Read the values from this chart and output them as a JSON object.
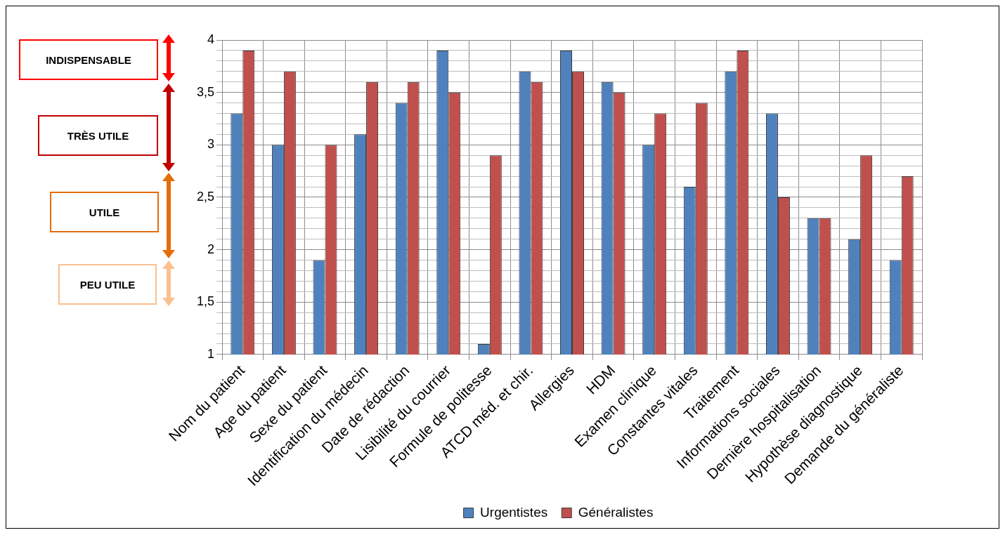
{
  "chart_data": {
    "type": "bar",
    "categories": [
      "Nom du patient",
      "Age du patient",
      "Sexe du patient",
      "Identification du médecin",
      "Date de rédaction",
      "Lisibilité du courrier",
      "Formule de politesse",
      "ATCD méd. et chir.",
      "Allergies",
      "HDM",
      "Examen clinique",
      "Constantes vitales",
      "Traitement",
      "Informations sociales",
      "Dernière hospitalisation",
      "Hypothèse diagnostique",
      "Demande du généraliste"
    ],
    "series": [
      {
        "name": "Urgentistes",
        "color": "#4f81bd",
        "values": [
          3.3,
          3.0,
          1.9,
          3.1,
          3.4,
          3.9,
          1.1,
          3.7,
          3.9,
          3.6,
          3.0,
          2.6,
          3.7,
          3.3,
          2.3,
          2.1,
          1.9
        ]
      },
      {
        "name": "Généralistes",
        "color": "#c0504d",
        "values": [
          3.9,
          3.7,
          3.0,
          3.6,
          3.6,
          3.5,
          2.9,
          3.6,
          3.7,
          3.5,
          3.3,
          3.4,
          3.9,
          2.5,
          2.3,
          2.9,
          2.7
        ]
      }
    ],
    "ylim": [
      1,
      4
    ],
    "yticks": [
      1,
      {
        "value": 1.1,
        "label": null
      },
      {
        "value": 1.2,
        "label": null
      },
      {
        "value": 1.3,
        "label": null
      },
      {
        "value": 1.4,
        "label": null
      },
      {
        "value": 1.5,
        "label": "1,5"
      },
      {
        "value": 1.6,
        "label": null
      },
      {
        "value": 1.7,
        "label": null
      },
      {
        "value": 1.8,
        "label": null
      },
      {
        "value": 1.9,
        "label": null
      },
      2,
      {
        "value": 2.1,
        "label": null
      },
      {
        "value": 2.2,
        "label": null
      },
      {
        "value": 2.3,
        "label": null
      },
      {
        "value": 2.4,
        "label": null
      },
      {
        "value": 2.5,
        "label": "2,5"
      },
      {
        "value": 2.6,
        "label": null
      },
      {
        "value": 2.7,
        "label": null
      },
      {
        "value": 2.8,
        "label": null
      },
      {
        "value": 2.9,
        "label": null
      },
      3,
      {
        "value": 3.1,
        "label": null
      },
      {
        "value": 3.2,
        "label": null
      },
      {
        "value": 3.3,
        "label": null
      },
      {
        "value": 3.4,
        "label": null
      },
      {
        "value": 3.5,
        "label": "3,5"
      },
      {
        "value": 3.6,
        "label": null
      },
      {
        "value": 3.7,
        "label": null
      },
      {
        "value": 3.8,
        "label": null
      },
      {
        "value": 3.9,
        "label": null
      },
      4
    ],
    "grid": true,
    "legend": "bottom",
    "annotations": [
      "INDISPENSABLE",
      "TRÈS UTILE",
      "UTILE",
      "PEU UTILE"
    ]
  }
}
